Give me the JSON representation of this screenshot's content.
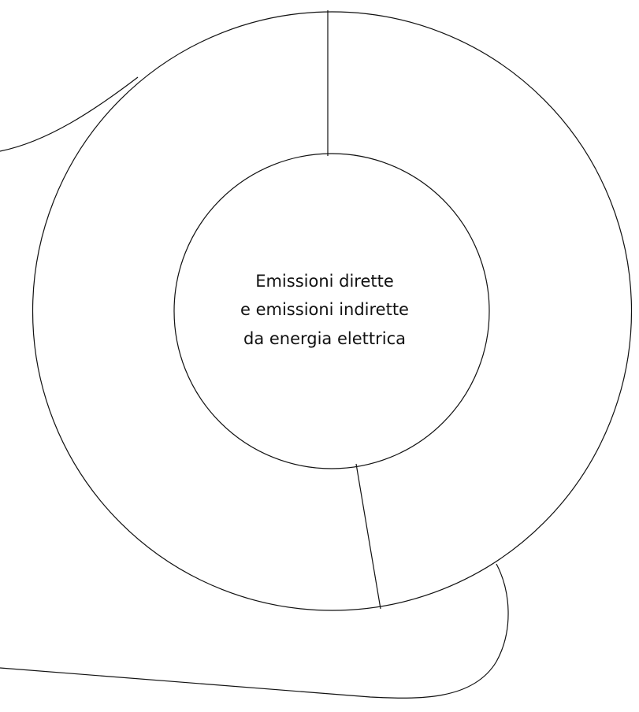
{
  "center_label": {
    "lines": [
      "Emissioni dirette",
      "e emissioni indirette",
      "da energia elettrica"
    ]
  }
}
